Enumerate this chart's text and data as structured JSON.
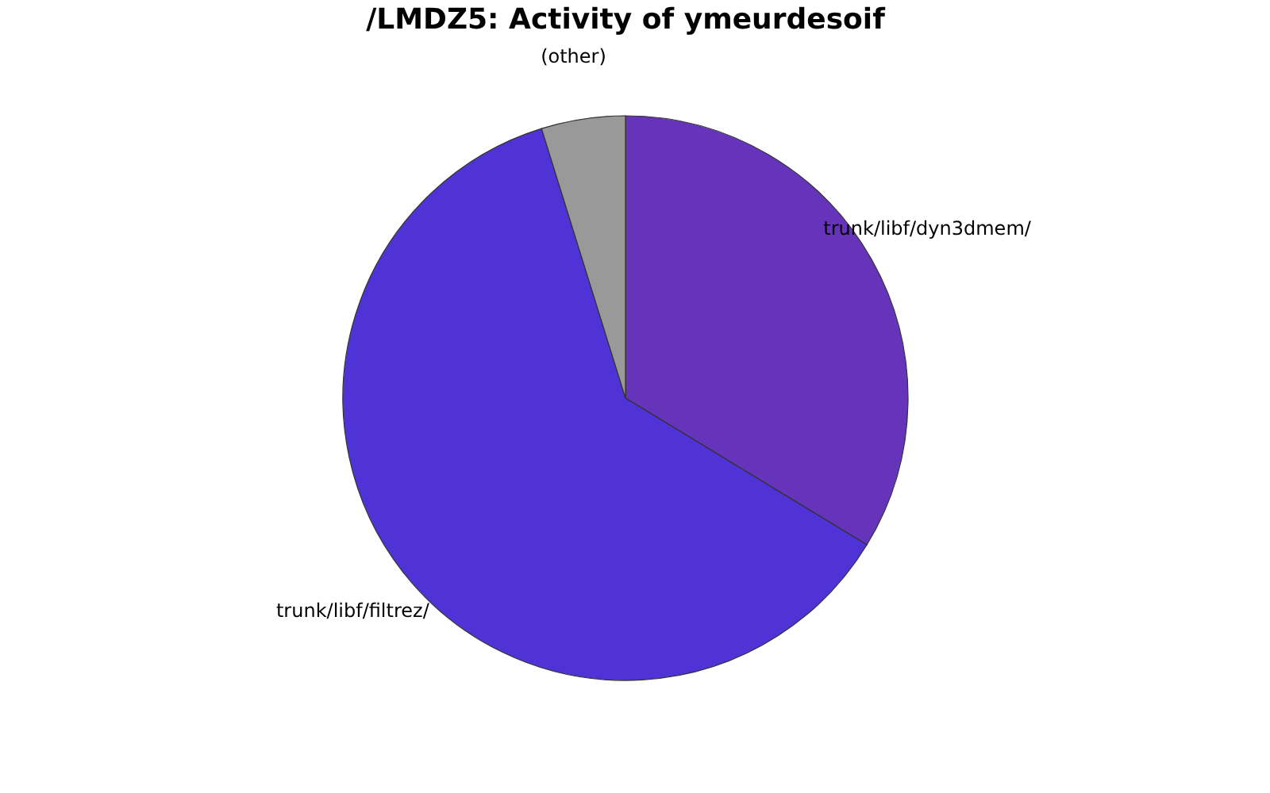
{
  "chart_data": {
    "type": "pie",
    "title": "/LMDZ5: Activity of ymeurdesoif",
    "categories": [
      "trunk/libf/dyn3dmem/",
      "trunk/libf/filtrez/",
      "(other)"
    ],
    "values": [
      33.7,
      61.5,
      4.8
    ],
    "colors": [
      "#6633bb",
      "#5033d6",
      "#999999"
    ],
    "legend": false
  }
}
